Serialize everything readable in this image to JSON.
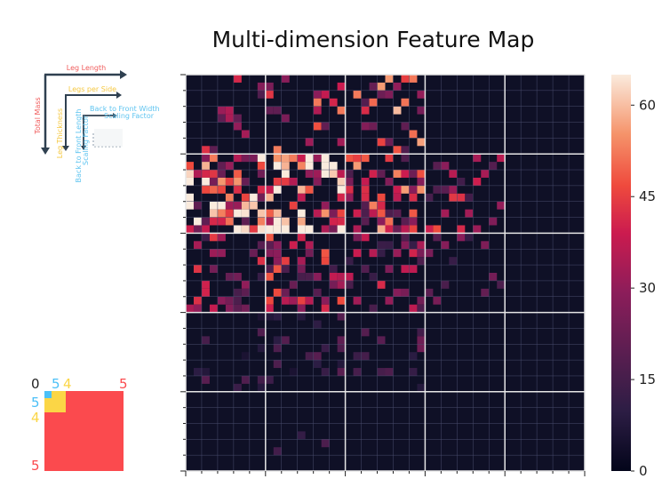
{
  "title": "Multi-dimension Feature Map",
  "axis_key": {
    "leg_length": "Leg Length",
    "total_mass": "Total Mass",
    "legs_per_side": "Legs per Side",
    "leg_thickness": "Leg Thickness",
    "back_to_front_width_line1": "Back to Front Width",
    "back_to_front_width_line2": "Scaling Factor",
    "back_to_front_length_line1": "Back to Front Length",
    "back_to_front_length_line2": "Scaling Factor"
  },
  "level_legend": {
    "top_labels": [
      "0",
      "5",
      "4",
      "5"
    ],
    "left_labels": [
      "5",
      "4",
      "5"
    ]
  },
  "chart_data": {
    "type": "heatmap",
    "title": "Multi-dimension Feature Map",
    "grid_size": 50,
    "outer_blocks": 5,
    "colorbar": {
      "min": 0,
      "max": 65,
      "ticks": [
        "0",
        "15",
        "30",
        "45",
        "60"
      ],
      "colormap": "rocket"
    },
    "colors": {
      "background_cell": "#0f1026",
      "cell_grid_line": "#4a4d6e",
      "outer_grid_line": "#e6e6e6",
      "key_red": "#f05c5c",
      "key_yellow": "#f5c842",
      "key_blue": "#5ec4f0",
      "key_dark": "#2f4050",
      "legend_red": "#fb4a4e",
      "legend_yellow": "#fbd646",
      "legend_blue": "#4bc0f7"
    },
    "active_regions": [
      {
        "block_row": 0,
        "block_col": 0,
        "intensity": 30,
        "density": 0.18
      },
      {
        "block_row": 0,
        "block_col": 1,
        "intensity": 38,
        "density": 0.25
      },
      {
        "block_row": 0,
        "block_col": 2,
        "intensity": 40,
        "density": 0.3
      },
      {
        "block_row": 1,
        "block_col": 0,
        "intensity": 50,
        "density": 0.55
      },
      {
        "block_row": 1,
        "block_col": 1,
        "intensity": 52,
        "density": 0.6
      },
      {
        "block_row": 1,
        "block_col": 2,
        "intensity": 40,
        "density": 0.45
      },
      {
        "block_row": 1,
        "block_col": 3,
        "intensity": 32,
        "density": 0.25
      },
      {
        "block_row": 2,
        "block_col": 0,
        "intensity": 30,
        "density": 0.3
      },
      {
        "block_row": 2,
        "block_col": 1,
        "intensity": 33,
        "density": 0.4
      },
      {
        "block_row": 2,
        "block_col": 2,
        "intensity": 28,
        "density": 0.25
      },
      {
        "block_row": 2,
        "block_col": 3,
        "intensity": 22,
        "density": 0.18
      },
      {
        "block_row": 3,
        "block_col": 0,
        "intensity": 14,
        "density": 0.12
      },
      {
        "block_row": 3,
        "block_col": 1,
        "intensity": 14,
        "density": 0.15
      },
      {
        "block_row": 3,
        "block_col": 2,
        "intensity": 16,
        "density": 0.1
      },
      {
        "block_row": 4,
        "block_col": 1,
        "intensity": 12,
        "density": 0.04
      }
    ]
  }
}
